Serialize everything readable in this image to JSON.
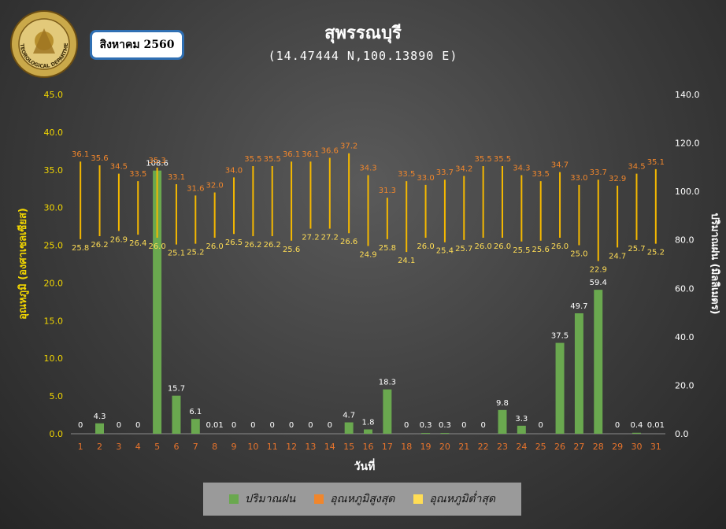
{
  "header": {
    "month_label": "สิงหาคม 2560",
    "station_title": "สุพรรณบุรี",
    "coordinates": "(14.47444 N,100.13890 E)"
  },
  "logo": {
    "name": "meteorological-department-seal",
    "text": "METEOROLOGICAL DEPARTMENT"
  },
  "legend": {
    "rain_label": "ปริมาณฝน",
    "tmax_label": "อุณหภูมิสูงสุด",
    "tmin_label": "อุณหภูมิต่ำสุด"
  },
  "colors": {
    "rain": "#6aa84f",
    "tmax": "#f0862c",
    "tmin": "#ffdd55",
    "left_axis": "#f2d600",
    "day_ticks": "#e8742c",
    "tmin_labels": "#ffdd55",
    "tmax_labels": "#f0862c"
  },
  "chart_data": {
    "type": "bar",
    "xlabel": "วันที่",
    "ylabel_left": "อุณหภูมิ (องศาเซลเซียส)",
    "ylabel_right": "ปริมาณฝน (มิลลิเมตร)",
    "ylim_left": [
      0,
      45
    ],
    "ylim_right": [
      0,
      140
    ],
    "yticks_left": [
      "0.0",
      "5.0",
      "10.0",
      "15.0",
      "20.0",
      "25.0",
      "30.0",
      "35.0",
      "40.0",
      "45.0"
    ],
    "yticks_right": [
      "0.0",
      "20.0",
      "40.0",
      "60.0",
      "80.0",
      "100.0",
      "120.0",
      "140.0"
    ],
    "categories": [
      "1",
      "2",
      "3",
      "4",
      "5",
      "6",
      "7",
      "8",
      "9",
      "10",
      "11",
      "12",
      "13",
      "14",
      "15",
      "16",
      "17",
      "18",
      "19",
      "20",
      "21",
      "22",
      "23",
      "24",
      "25",
      "26",
      "27",
      "28",
      "29",
      "30",
      "31"
    ],
    "series": [
      {
        "name": "ปริมาณฝน",
        "axis": "right",
        "values": [
          0,
          4.3,
          0,
          0,
          108.6,
          15.7,
          6.1,
          0.01,
          0,
          0,
          0,
          0,
          0,
          0,
          4.7,
          1.8,
          18.3,
          0,
          0.3,
          0.3,
          0,
          0,
          9.8,
          3.3,
          0,
          37.5,
          49.7,
          59.4,
          0,
          0.4,
          0.01
        ],
        "labels": [
          "0",
          "4.3",
          "0",
          "0",
          "108.6",
          "15.7",
          "6.1",
          "0.01",
          "0",
          "0",
          "0",
          "0",
          "0",
          "0",
          "4.7",
          "1.8",
          "18.3",
          "0",
          "0.3",
          "0.3",
          "0",
          "0",
          "9.8",
          "3.3",
          "0",
          "37.5",
          "49.7",
          "59.4",
          "0",
          "0.4",
          "0.01"
        ]
      },
      {
        "name": "อุณหภูมิสูงสุด",
        "axis": "left",
        "values": [
          36.1,
          35.6,
          34.5,
          33.5,
          35.3,
          33.1,
          31.6,
          32.0,
          34.0,
          35.5,
          35.5,
          36.1,
          36.1,
          36.6,
          37.2,
          34.3,
          31.3,
          33.5,
          33.0,
          33.7,
          34.2,
          35.5,
          35.5,
          34.3,
          33.5,
          34.7,
          33.0,
          33.7,
          32.9,
          34.5,
          35.1
        ]
      },
      {
        "name": "อุณหภูมิต่ำสุด",
        "axis": "left",
        "values": [
          25.8,
          26.2,
          26.9,
          26.4,
          26.0,
          25.1,
          25.2,
          26.0,
          26.5,
          26.2,
          26.2,
          25.6,
          27.2,
          27.2,
          26.6,
          24.9,
          25.8,
          24.1,
          26.0,
          25.4,
          25.7,
          26.0,
          26.0,
          25.5,
          25.6,
          26.0,
          25.0,
          22.9,
          24.7,
          25.7,
          25.2
        ]
      }
    ]
  }
}
